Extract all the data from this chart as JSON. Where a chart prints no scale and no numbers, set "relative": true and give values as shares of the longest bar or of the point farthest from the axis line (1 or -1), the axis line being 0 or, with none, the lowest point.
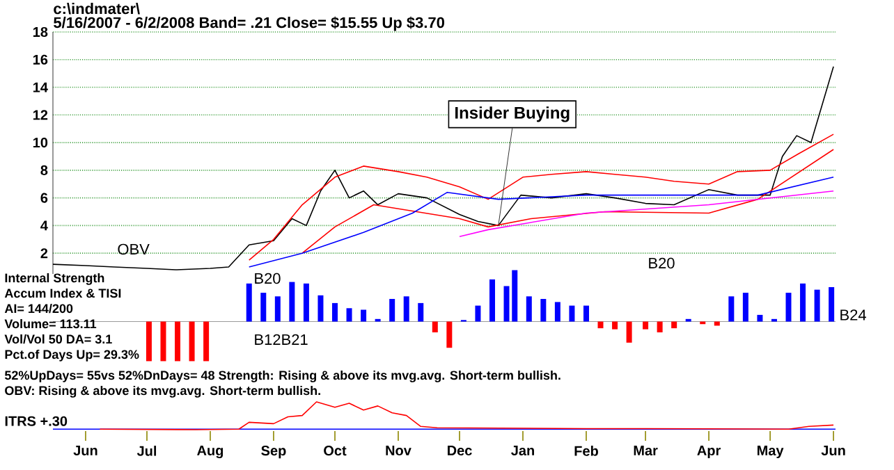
{
  "chart_data": [
    {
      "type": "line",
      "title": "c:\\indmater\\",
      "subtitle": "5/16/2007 - 6/2/2008  Band= .21  Close= $15.55  Up $3.70",
      "xlim": [
        "2007-05-16",
        "2008-06-02"
      ],
      "ylim": [
        0.5,
        18
      ],
      "yticks": [
        2,
        4,
        6,
        8,
        10,
        12,
        14,
        16,
        18
      ],
      "grid": "y",
      "tick_labels": "y",
      "series": [
        {
          "color": "#000000",
          "x": [
            "2007-05-16",
            "2007-06-01",
            "2007-06-15",
            "2007-07-01",
            "2007-07-15",
            "2007-08-01",
            "2007-08-10",
            "2007-08-20",
            "2007-09-01",
            "2007-09-10",
            "2007-09-17",
            "2007-09-24",
            "2007-10-01",
            "2007-10-08",
            "2007-10-15",
            "2007-10-22",
            "2007-11-01",
            "2007-11-15",
            "2007-12-01",
            "2007-12-10",
            "2007-12-20",
            "2007-12-31",
            "2008-01-15",
            "2008-02-01",
            "2008-02-15",
            "2008-03-01",
            "2008-03-15",
            "2008-04-01",
            "2008-04-15",
            "2008-05-01",
            "2008-05-07",
            "2008-05-14",
            "2008-05-21",
            "2008-06-01"
          ],
          "values": [
            1.2,
            1.1,
            1.0,
            0.9,
            0.8,
            0.9,
            1.0,
            2.6,
            2.9,
            4.5,
            4.0,
            6.5,
            8.0,
            6.0,
            6.5,
            5.5,
            6.3,
            6.0,
            4.8,
            4.3,
            4.0,
            6.2,
            6.0,
            6.3,
            6.0,
            5.6,
            5.5,
            6.6,
            6.2,
            6.2,
            9.0,
            10.5,
            10.0,
            15.5
          ]
        },
        {
          "color": "#ff0000",
          "x": [
            "2007-08-20",
            "2007-09-01",
            "2007-09-15",
            "2007-10-01",
            "2007-10-15",
            "2007-11-01",
            "2007-11-15",
            "2007-12-01",
            "2007-12-15",
            "2008-01-01",
            "2008-01-15",
            "2008-02-01",
            "2008-02-15",
            "2008-03-01",
            "2008-03-15",
            "2008-04-01",
            "2008-04-15",
            "2008-05-01",
            "2008-05-15",
            "2008-06-01"
          ],
          "values": [
            1.5,
            3.0,
            5.5,
            7.5,
            8.3,
            7.9,
            7.5,
            6.8,
            5.9,
            7.5,
            7.7,
            7.9,
            7.7,
            7.5,
            7.2,
            7.0,
            7.9,
            8.0,
            9.2,
            10.6
          ]
        },
        {
          "color": "#ff0000",
          "x": [
            "2007-09-15",
            "2007-10-01",
            "2007-10-20",
            "2007-11-10",
            "2007-12-01",
            "2007-12-15",
            "2008-01-05",
            "2008-02-10",
            "2008-04-01",
            "2008-04-25",
            "2008-06-01"
          ],
          "values": [
            2.0,
            3.9,
            5.5,
            5.0,
            4.5,
            3.9,
            4.5,
            5.0,
            4.9,
            5.9,
            9.5
          ]
        },
        {
          "color": "#0000ff",
          "x": [
            "2007-08-20",
            "2007-09-15",
            "2007-10-15",
            "2007-11-08",
            "2007-11-25",
            "2007-12-20",
            "2008-02-01",
            "2008-03-15",
            "2008-04-25",
            "2008-06-01"
          ],
          "values": [
            1.0,
            2.0,
            3.5,
            4.9,
            6.4,
            5.9,
            6.2,
            6.2,
            6.2,
            7.5
          ]
        },
        {
          "color": "#ff00ff",
          "x": [
            "2007-12-01",
            "2007-12-15",
            "2008-02-01",
            "2008-04-01",
            "2008-06-01"
          ],
          "values": [
            3.2,
            3.7,
            4.9,
            5.5,
            6.5
          ]
        }
      ],
      "annotations": [
        {
          "text": "Insider Buying",
          "x": "2007-12-20",
          "y": 4.0
        },
        "OBV",
        "B20"
      ]
    },
    {
      "type": "bar",
      "relative": true,
      "xlim": [
        "2007-05-16",
        "2008-06-02"
      ],
      "tick_labels": false,
      "x": [
        "2007-07-02",
        "2007-07-09",
        "2007-07-16",
        "2007-07-23",
        "2007-07-30",
        "2007-08-20",
        "2007-08-27",
        "2007-09-03",
        "2007-09-10",
        "2007-09-17",
        "2007-09-24",
        "2007-10-01",
        "2007-10-08",
        "2007-10-15",
        "2007-10-22",
        "2007-10-29",
        "2007-11-05",
        "2007-11-12",
        "2007-11-19",
        "2007-11-26",
        "2007-12-03",
        "2007-12-10",
        "2007-12-17",
        "2007-12-24",
        "2007-12-28",
        "2008-01-04",
        "2008-01-11",
        "2008-01-18",
        "2008-01-25",
        "2008-02-01",
        "2008-02-08",
        "2008-02-15",
        "2008-02-22",
        "2008-03-01",
        "2008-03-08",
        "2008-03-15",
        "2008-03-22",
        "2008-03-29",
        "2008-04-05",
        "2008-04-12",
        "2008-04-19",
        "2008-04-26",
        "2008-05-03",
        "2008-05-10",
        "2008-05-17",
        "2008-05-24",
        "2008-05-31"
      ],
      "values": [
        -0.77,
        -0.77,
        -0.77,
        -0.77,
        -0.77,
        0.74,
        0.56,
        0.49,
        0.77,
        0.74,
        0.51,
        0.36,
        0.26,
        0.23,
        0.05,
        0.44,
        0.49,
        0.36,
        -0.21,
        -0.51,
        0.03,
        0.31,
        0.82,
        0.69,
        1.0,
        0.49,
        0.44,
        0.38,
        0.31,
        0.31,
        -0.13,
        -0.15,
        -0.41,
        -0.15,
        -0.21,
        -0.13,
        0.05,
        -0.05,
        -0.08,
        0.49,
        0.56,
        0.13,
        0.05,
        0.56,
        0.74,
        0.62,
        0.67
      ],
      "colors": [
        "#ff0000",
        "#ff0000",
        "#ff0000",
        "#ff0000",
        "#ff0000",
        "#0000ff",
        "#0000ff",
        "#0000ff",
        "#0000ff",
        "#0000ff",
        "#0000ff",
        "#0000ff",
        "#0000ff",
        "#0000ff",
        "#0000ff",
        "#0000ff",
        "#0000ff",
        "#0000ff",
        "#ff0000",
        "#ff0000",
        "#0000ff",
        "#0000ff",
        "#0000ff",
        "#0000ff",
        "#0000ff",
        "#0000ff",
        "#0000ff",
        "#0000ff",
        "#0000ff",
        "#0000ff",
        "#ff0000",
        "#ff0000",
        "#ff0000",
        "#ff0000",
        "#ff0000",
        "#ff0000",
        "#0000ff",
        "#ff0000",
        "#ff0000",
        "#0000ff",
        "#0000ff",
        "#0000ff",
        "#0000ff",
        "#0000ff",
        "#0000ff",
        "#0000ff",
        "#0000ff"
      ],
      "annotations": [
        "Internal Strength",
        "Accum Index & TISI",
        "AI= 144/200",
        "Volume= 113.11",
        "Vol/Vol 50 DA= 3.1",
        "Pct.of Days Up= 29.3%",
        "52%UpDays= 55vs 52%DnDays= 48   Strength: Rising & above its mvg.avg. Short-term bullish.",
        "OBV: Rising & above its mvg.avg. Short-term bullish.",
        "B20",
        "B12B21",
        {
          "text": "B24",
          "x": "2008-06-01",
          "y": 0.13
        }
      ]
    },
    {
      "type": "line",
      "relative": true,
      "xlim": [
        "2007-05-16",
        "2008-06-02"
      ],
      "tick_labels": "x",
      "ylabel": "ITRS +.30",
      "color": "#ff0000",
      "xticks": [
        {
          "value": "2007-06-01",
          "label": "Jun"
        },
        {
          "value": "2007-07-01",
          "label": "Jul"
        },
        {
          "value": "2007-08-01",
          "label": "Aug"
        },
        {
          "value": "2007-09-01",
          "label": "Sep"
        },
        {
          "value": "2007-10-01",
          "label": "Oct"
        },
        {
          "value": "2007-11-01",
          "label": "Nov"
        },
        {
          "value": "2007-12-01",
          "label": "Dec"
        },
        {
          "value": "2008-01-01",
          "label": "Jan"
        },
        {
          "value": "2008-02-01",
          "label": "Feb"
        },
        {
          "value": "2008-03-01",
          "label": "Mar"
        },
        {
          "value": "2008-04-01",
          "label": "Apr"
        },
        {
          "value": "2008-05-01",
          "label": "May"
        },
        {
          "value": "2008-06-01",
          "label": "Jun"
        }
      ],
      "x": [
        "2007-06-08",
        "2007-07-25",
        "2007-08-15",
        "2007-08-20",
        "2007-09-01",
        "2007-09-08",
        "2007-09-15",
        "2007-09-22",
        "2007-10-01",
        "2007-10-08",
        "2007-10-15",
        "2007-10-22",
        "2007-10-29",
        "2007-11-05",
        "2007-11-12",
        "2007-11-20",
        "2008-02-01",
        "2008-03-01",
        "2008-05-10",
        "2008-05-20",
        "2008-06-01"
      ],
      "values": [
        0,
        -0.02,
        0,
        0.25,
        0.2,
        0.45,
        0.5,
        1.0,
        0.8,
        0.95,
        0.7,
        0.85,
        0.6,
        0.5,
        0.1,
        0.05,
        0.02,
        0.02,
        0,
        0.1,
        0.15
      ]
    }
  ]
}
